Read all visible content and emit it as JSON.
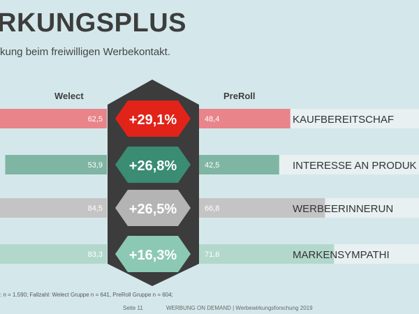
{
  "header": {
    "title": "RKUNGSPLUS",
    "subtitle": "kung beim freiwilligen Werbekontakt."
  },
  "chart_data": {
    "type": "bar",
    "series": [
      {
        "name": "Welect",
        "values": [
          62.5,
          53.9,
          84.5,
          83.3
        ],
        "value_labels": [
          "62,5",
          "53,9",
          "84,5",
          "83,3"
        ]
      },
      {
        "name": "PreRoll",
        "values": [
          48.4,
          42.5,
          66.8,
          71.6
        ],
        "value_labels": [
          "48,4",
          "42,5",
          "66,8",
          "71,6"
        ]
      }
    ],
    "categories": [
      "KAUFBEREITSCHAF",
      "INTERESSE AN PRODUK",
      "WERBEERINNERUN",
      "MARKENSYMPATHI"
    ],
    "uplift_labels": [
      "+29,1%",
      "+26,8%",
      "+26,5%",
      "+16,3%"
    ],
    "ylim": [
      0,
      100
    ],
    "colors": {
      "category_colors": [
        "#e8848a",
        "#7fb5a3",
        "#c4c4c4",
        "#b2d8cb"
      ],
      "hexagon_colors": [
        "#e2231a",
        "#3a8c73",
        "#b4b4b4",
        "#8cc9b5"
      ],
      "label_strip": "#e8f0f2",
      "column": "#3c3c3c"
    }
  },
  "footnote": ": n = 1.590; Fallzahl: Welect Gruppe n = 641, PreRoll Gruppe n = 604;",
  "footer": {
    "page": "Seite 11",
    "text": "WERBUNG ON DEMAND | Werbewirkungsforschung 2019"
  }
}
